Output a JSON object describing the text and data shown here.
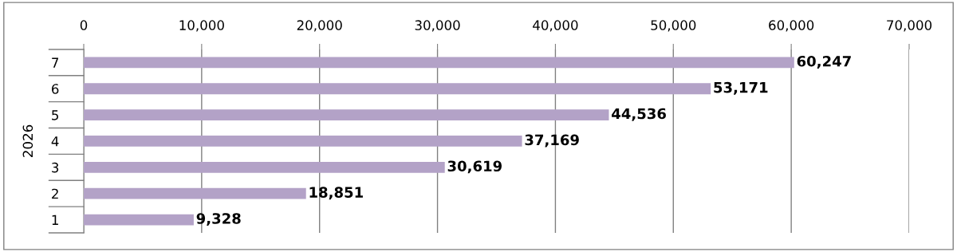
{
  "chart_data": {
    "type": "bar",
    "orientation": "horizontal",
    "ylabel": "2026",
    "categories": [
      "7",
      "6",
      "5",
      "4",
      "3",
      "2",
      "1"
    ],
    "values": [
      60247,
      53171,
      44536,
      37169,
      30619,
      18851,
      9328
    ],
    "value_labels": [
      "60,247",
      "53,171",
      "44,536",
      "37,169",
      "30,619",
      "18,851",
      "9,328"
    ],
    "color": "#b3a2c7",
    "xlim": [
      0,
      70000
    ],
    "xticks": [
      0,
      {
        "value": 10000,
        "label": "10,000"
      },
      {
        "value": 20000,
        "label": "20,000"
      },
      {
        "value": 30000,
        "label": "30,000"
      },
      {
        "value": 40000,
        "label": "40,000"
      },
      {
        "value": 50000,
        "label": "50,000"
      },
      {
        "value": 60000,
        "label": "60,000"
      },
      {
        "value": 70000,
        "label": "70,000"
      }
    ],
    "grid": "x",
    "legend": false
  }
}
